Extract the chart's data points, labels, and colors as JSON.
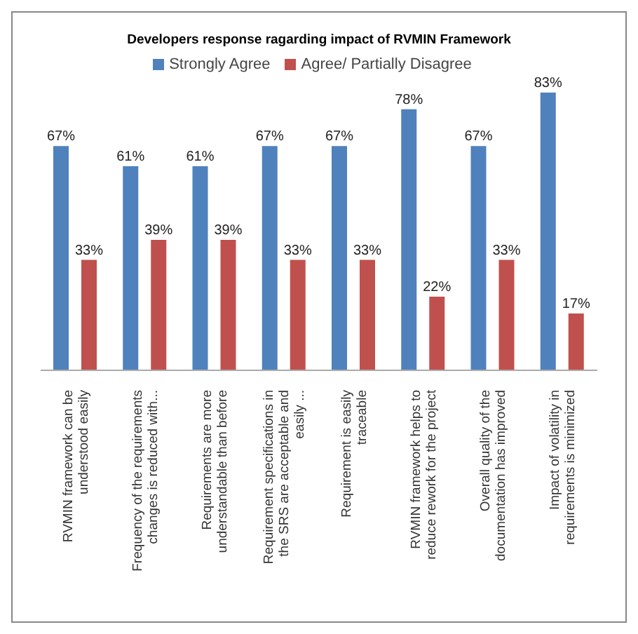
{
  "chart_data": {
    "type": "bar",
    "title": "Developers response ragarding impact of RVMIN Framework",
    "categories": [
      "RVMIN framework can be understood easily",
      "Frequency of the requirements changes is reduced with...",
      "Requirements are more understandable than before",
      "Requirement specifications in the SRS are acceptable and easily ...",
      "Requirement  is easily traceable",
      "RVMIN framework helps to reduce rework for the project",
      "Overall quality of the documentation has improved",
      "Impact of volatility in requirements is minimized"
    ],
    "series": [
      {
        "name": "Strongly Agree",
        "color": "#4f81bd",
        "values": [
          67,
          61,
          61,
          67,
          67,
          78,
          67,
          83
        ],
        "value_labels": [
          "67%",
          "61%",
          "61%",
          "67%",
          "67%",
          "78%",
          "67%",
          "83%"
        ]
      },
      {
        "name": "Agree/ Partially Disagree",
        "color": "#c0504d",
        "values": [
          33,
          39,
          39,
          33,
          33,
          22,
          33,
          17
        ],
        "value_labels": [
          "33%",
          "39%",
          "39%",
          "33%",
          "33%",
          "22%",
          "33%",
          "17%"
        ]
      }
    ],
    "legend": "top",
    "grid": false
  }
}
